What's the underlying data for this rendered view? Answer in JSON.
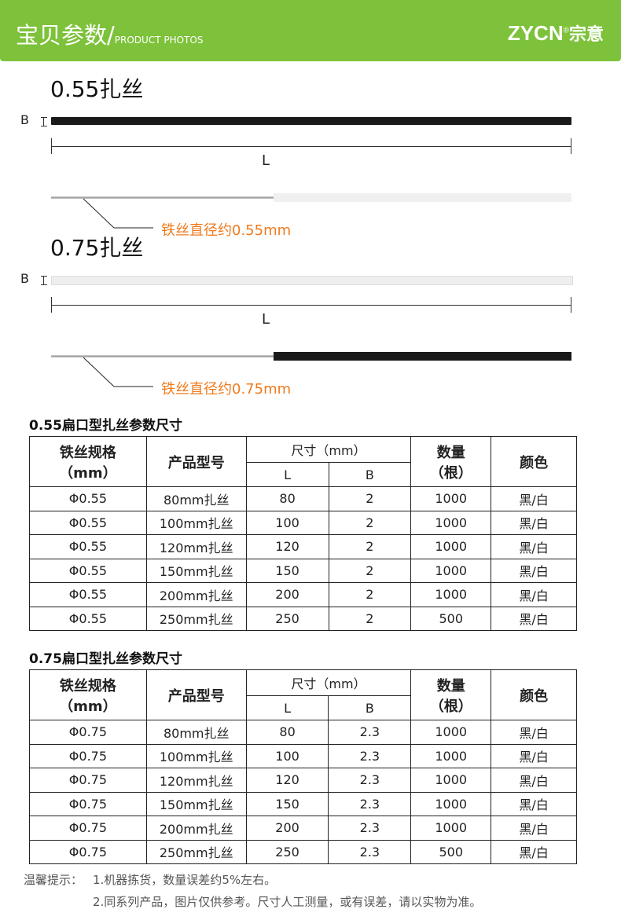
{
  "header": {
    "title": "宝贝参数/",
    "subtitle": "PRODUCT PHOTOS",
    "brand": "ZYCN",
    "brand_reg": "®",
    "brand_cn": "宗意",
    "color": "#7dc23a"
  },
  "diagrams": [
    {
      "title": "0.55扎丝",
      "b_label": "B",
      "l_label": "L",
      "wire_note": "铁丝直径约0.55mm",
      "bar_color": "#1a1a1a",
      "sleeve_color": "#f0f0f0"
    },
    {
      "title": "0.75扎丝",
      "b_label": "B",
      "l_label": "L",
      "wire_note": "铁丝直径约0.75mm",
      "bar_color": "#eeeeee",
      "sleeve_color": "#1a1a1a"
    }
  ],
  "headers": {
    "spec": "铁丝规格",
    "spec_unit": "（mm）",
    "model": "产品型号",
    "size": "尺寸（mm）",
    "L": "L",
    "B": "B",
    "qty": "数量",
    "qty_unit": "（根）",
    "color": "颜色"
  },
  "tables": [
    {
      "title": "0.55扁口型扎丝参数尺寸",
      "rows": [
        [
          "Φ0.55",
          "80mm扎丝",
          "80",
          "2",
          "1000",
          "黑/白"
        ],
        [
          "Φ0.55",
          "100mm扎丝",
          "100",
          "2",
          "1000",
          "黑/白"
        ],
        [
          "Φ0.55",
          "120mm扎丝",
          "120",
          "2",
          "1000",
          "黑/白"
        ],
        [
          "Φ0.55",
          "150mm扎丝",
          "150",
          "2",
          "1000",
          "黑/白"
        ],
        [
          "Φ0.55",
          "200mm扎丝",
          "200",
          "2",
          "1000",
          "黑/白"
        ],
        [
          "Φ0.55",
          "250mm扎丝",
          "250",
          "2",
          "500",
          "黑/白"
        ]
      ]
    },
    {
      "title": "0.75扁口型扎丝参数尺寸",
      "rows": [
        [
          "Φ0.75",
          "80mm扎丝",
          "80",
          "2.3",
          "1000",
          "黑/白"
        ],
        [
          "Φ0.75",
          "100mm扎丝",
          "100",
          "2.3",
          "1000",
          "黑/白"
        ],
        [
          "Φ0.75",
          "120mm扎丝",
          "120",
          "2.3",
          "1000",
          "黑/白"
        ],
        [
          "Φ0.75",
          "150mm扎丝",
          "150",
          "2.3",
          "1000",
          "黑/白"
        ],
        [
          "Φ0.75",
          "200mm扎丝",
          "200",
          "2.3",
          "1000",
          "黑/白"
        ],
        [
          "Φ0.75",
          "250mm扎丝",
          "250",
          "2.3",
          "500",
          "黑/白"
        ]
      ]
    }
  ],
  "notes": {
    "label": "温馨提示：",
    "line1": "1.机器拣货，数量误差约5%左右。",
    "line2": "2.同系列产品，图片仅供参考。尺寸人工测量，或有误差，请以实物为准。"
  }
}
